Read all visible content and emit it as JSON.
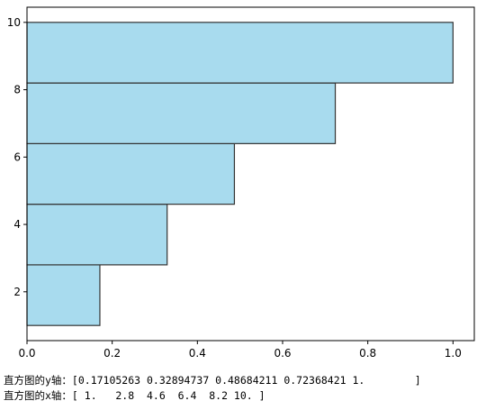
{
  "chart_data": {
    "type": "histogram",
    "orientation": "horizontal",
    "bins": [
      1,
      2.8,
      4.6,
      6.4,
      8.2,
      10
    ],
    "values": [
      0.17105263,
      0.32894737,
      0.48684211,
      0.72368421,
      1.0
    ],
    "color": "#a8dbee",
    "edgecolor": "#333333",
    "xlim": [
      0,
      1.05
    ],
    "xticks": [
      {
        "value": 0,
        "label": "0.0"
      },
      0.2,
      0.4,
      0.6,
      0.8,
      {
        "value": 1,
        "label": "1.0"
      }
    ],
    "ylim": [
      0.55,
      10.45
    ],
    "yticks": [
      2,
      4,
      6,
      8,
      10
    ]
  },
  "console": [
    "直方图的y轴：[0.17105263 0.32894737 0.48684211 0.72368421 1.        ]",
    "直方图的x轴：[ 1.   2.8  4.6  6.4  8.2 10. ]"
  ]
}
